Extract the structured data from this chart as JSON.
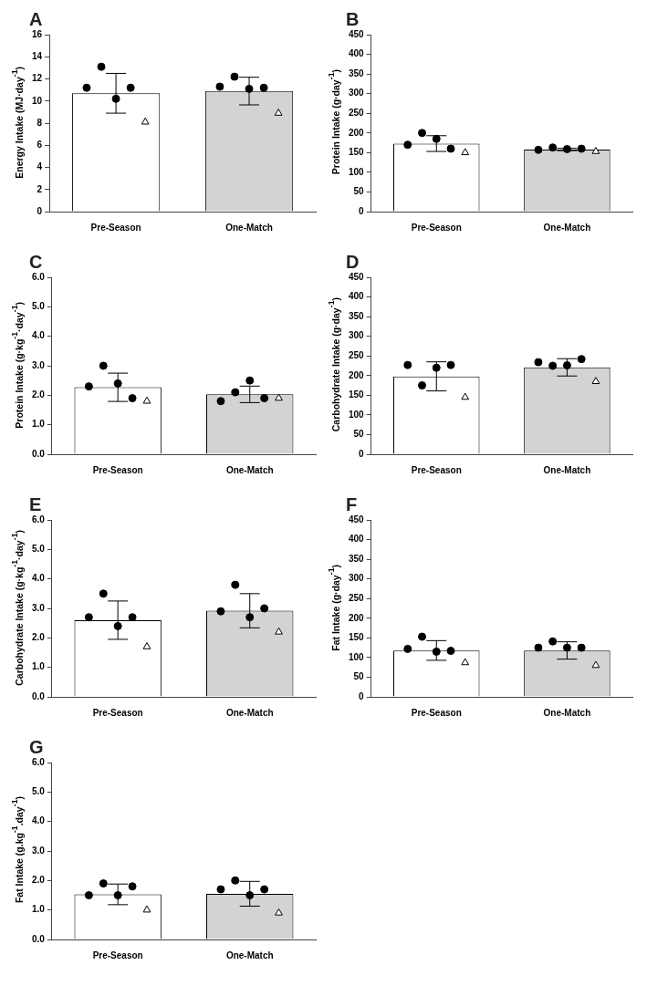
{
  "chart_data": [
    {
      "type": "bar",
      "title": "A",
      "ylabel": "Energy Intake (MJ·day$^{-1}$)",
      "categories": [
        "Pre-Season",
        "One-Match"
      ],
      "ylim": [
        0,
        16
      ],
      "yticks": [
        0,
        2,
        4,
        6,
        8,
        10,
        12,
        14,
        16
      ],
      "grid": false,
      "series": [
        {
          "type": "bar",
          "colors": [
            "#ffffff",
            "#d3d3d3"
          ],
          "values": [
            10.7,
            10.9
          ],
          "errors": [
            1.8,
            1.25
          ]
        },
        {
          "type": "scatter",
          "marker": "circle",
          "color": "#000000",
          "x": [
            "Pre-Season",
            "Pre-Season",
            "Pre-Season",
            "Pre-Season",
            "One-Match",
            "One-Match",
            "One-Match",
            "One-Match"
          ],
          "values": [
            11.2,
            13.1,
            10.2,
            11.2,
            11.3,
            12.2,
            11.1,
            11.2
          ]
        },
        {
          "type": "scatter",
          "marker": "triangle",
          "color": "#ffffff",
          "x": [
            "Pre-Season",
            "One-Match"
          ],
          "values": [
            8.1,
            8.9
          ]
        }
      ]
    },
    {
      "type": "bar",
      "title": "B",
      "ylabel": "Protein Intake (g·day$^{-1}$)",
      "categories": [
        "Pre-Season",
        "One-Match"
      ],
      "ylim": [
        0,
        450
      ],
      "yticks": [
        0,
        50,
        100,
        150,
        200,
        250,
        300,
        350,
        400,
        450
      ],
      "grid": false,
      "series": [
        {
          "type": "bar",
          "colors": [
            "#ffffff",
            "#d3d3d3"
          ],
          "values": [
            173,
            158
          ],
          "errors": [
            20,
            3
          ]
        },
        {
          "type": "scatter",
          "marker": "circle",
          "color": "#000000",
          "x": [
            "Pre-Season",
            "Pre-Season",
            "Pre-Season",
            "Pre-Season",
            "One-Match",
            "One-Match",
            "One-Match",
            "One-Match"
          ],
          "values": [
            170,
            200,
            185,
            160,
            157,
            163,
            159,
            160
          ]
        },
        {
          "type": "scatter",
          "marker": "triangle",
          "color": "#ffffff",
          "x": [
            "Pre-Season",
            "One-Match"
          ],
          "values": [
            150,
            153
          ]
        }
      ]
    },
    {
      "type": "bar",
      "title": "C",
      "ylabel": "Protein Intake (g·kg$^{-1}$·day$^{-1}$)",
      "categories": [
        "Pre-Season",
        "One-Match"
      ],
      "ylim": [
        0,
        6
      ],
      "yticks": [
        {
          "value": 0,
          "label": "0.0"
        },
        {
          "value": 1,
          "label": "1.0"
        },
        {
          "value": 2,
          "label": "2.0"
        },
        {
          "value": 3,
          "label": "3.0"
        },
        {
          "value": 4,
          "label": "4.0"
        },
        {
          "value": 5,
          "label": "5.0"
        },
        {
          "value": 6,
          "label": "6.0"
        }
      ],
      "grid": false,
      "series": [
        {
          "type": "bar",
          "colors": [
            "#ffffff",
            "#d3d3d3"
          ],
          "values": [
            2.27,
            2.03
          ],
          "errors": [
            0.48,
            0.28
          ]
        },
        {
          "type": "scatter",
          "marker": "circle",
          "color": "#000000",
          "x": [
            "Pre-Season",
            "Pre-Season",
            "Pre-Season",
            "Pre-Season",
            "One-Match",
            "One-Match",
            "One-Match",
            "One-Match"
          ],
          "values": [
            2.3,
            3.0,
            2.4,
            1.9,
            1.8,
            2.1,
            2.5,
            1.9
          ]
        },
        {
          "type": "scatter",
          "marker": "triangle",
          "color": "#ffffff",
          "x": [
            "Pre-Season",
            "One-Match"
          ],
          "values": [
            1.8,
            1.9
          ]
        }
      ]
    },
    {
      "type": "bar",
      "title": "D",
      "ylabel": "Carbohydrate Intake (g·day$^{-1}$)",
      "categories": [
        "Pre-Season",
        "One-Match"
      ],
      "ylim": [
        0,
        450
      ],
      "yticks": [
        0,
        50,
        100,
        150,
        200,
        250,
        300,
        350,
        400,
        450
      ],
      "grid": false,
      "series": [
        {
          "type": "bar",
          "colors": [
            "#ffffff",
            "#d3d3d3"
          ],
          "values": [
            198,
            221
          ],
          "errors": [
            37,
            22
          ]
        },
        {
          "type": "scatter",
          "marker": "circle",
          "color": "#000000",
          "x": [
            "Pre-Season",
            "Pre-Season",
            "Pre-Season",
            "Pre-Season",
            "One-Match",
            "One-Match",
            "One-Match",
            "One-Match"
          ],
          "values": [
            227,
            175,
            220,
            227,
            234,
            225,
            226,
            242
          ]
        },
        {
          "type": "scatter",
          "marker": "triangle",
          "color": "#ffffff",
          "x": [
            "Pre-Season",
            "One-Match"
          ],
          "values": [
            145,
            185
          ]
        }
      ]
    },
    {
      "type": "bar",
      "title": "E",
      "ylabel": "Carbohydrate Intake (g·kg$^{-1}$·day$^{-1}$)",
      "categories": [
        "Pre-Season",
        "One-Match"
      ],
      "ylim": [
        0,
        6
      ],
      "yticks": [
        {
          "value": 0,
          "label": "0.0"
        },
        {
          "value": 1,
          "label": "1.0"
        },
        {
          "value": 2,
          "label": "2.0"
        },
        {
          "value": 3,
          "label": "3.0"
        },
        {
          "value": 4,
          "label": "4.0"
        },
        {
          "value": 5,
          "label": "5.0"
        },
        {
          "value": 6,
          "label": "6.0"
        }
      ],
      "grid": false,
      "series": [
        {
          "type": "bar",
          "colors": [
            "#ffffff",
            "#d3d3d3"
          ],
          "values": [
            2.6,
            2.92
          ],
          "errors": [
            0.65,
            0.58
          ]
        },
        {
          "type": "scatter",
          "marker": "circle",
          "color": "#000000",
          "x": [
            "Pre-Season",
            "Pre-Season",
            "Pre-Season",
            "Pre-Season",
            "One-Match",
            "One-Match",
            "One-Match",
            "One-Match"
          ],
          "values": [
            2.7,
            3.5,
            2.4,
            2.7,
            2.9,
            3.8,
            2.7,
            3.0
          ]
        },
        {
          "type": "scatter",
          "marker": "triangle",
          "color": "#ffffff",
          "x": [
            "Pre-Season",
            "One-Match"
          ],
          "values": [
            1.7,
            2.2
          ]
        }
      ]
    },
    {
      "type": "bar",
      "title": "F",
      "ylabel": "Fat Intake (g·day$^{-1}$)",
      "categories": [
        "Pre-Season",
        "One-Match"
      ],
      "ylim": [
        0,
        450
      ],
      "yticks": [
        0,
        50,
        100,
        150,
        200,
        250,
        300,
        350,
        400,
        450
      ],
      "grid": false,
      "series": [
        {
          "type": "bar",
          "colors": [
            "#ffffff",
            "#d3d3d3"
          ],
          "values": [
            118,
            118
          ],
          "errors": [
            25,
            22
          ]
        },
        {
          "type": "scatter",
          "marker": "circle",
          "color": "#000000",
          "x": [
            "Pre-Season",
            "Pre-Season",
            "Pre-Season",
            "Pre-Season",
            "One-Match",
            "One-Match",
            "One-Match",
            "One-Match"
          ],
          "values": [
            122,
            153,
            115,
            117,
            125,
            141,
            125,
            125
          ]
        },
        {
          "type": "scatter",
          "marker": "triangle",
          "color": "#ffffff",
          "x": [
            "Pre-Season",
            "One-Match"
          ],
          "values": [
            87,
            80
          ]
        }
      ]
    },
    {
      "type": "bar",
      "title": "G",
      "ylabel": "Fat Intake (g.kg$^{-1}$.day$^{-1}$)",
      "categories": [
        "Pre-Season",
        "One-Match"
      ],
      "ylim": [
        0,
        6
      ],
      "yticks": [
        {
          "value": 0,
          "label": "0.0"
        },
        {
          "value": 1,
          "label": "1.0"
        },
        {
          "value": 2,
          "label": "2.0"
        },
        {
          "value": 3,
          "label": "3.0"
        },
        {
          "value": 4,
          "label": "4.0"
        },
        {
          "value": 5,
          "label": "5.0"
        },
        {
          "value": 6,
          "label": "6.0"
        }
      ],
      "grid": false,
      "series": [
        {
          "type": "bar",
          "colors": [
            "#ffffff",
            "#d3d3d3"
          ],
          "values": [
            1.53,
            1.55
          ],
          "errors": [
            0.35,
            0.42
          ]
        },
        {
          "type": "scatter",
          "marker": "circle",
          "color": "#000000",
          "x": [
            "Pre-Season",
            "Pre-Season",
            "Pre-Season",
            "Pre-Season",
            "One-Match",
            "One-Match",
            "One-Match",
            "One-Match"
          ],
          "values": [
            1.5,
            1.9,
            1.5,
            1.8,
            1.7,
            2.0,
            1.5,
            1.7
          ]
        },
        {
          "type": "scatter",
          "marker": "triangle",
          "color": "#ffffff",
          "x": [
            "Pre-Season",
            "One-Match"
          ],
          "values": [
            1.0,
            0.9
          ]
        }
      ]
    }
  ]
}
